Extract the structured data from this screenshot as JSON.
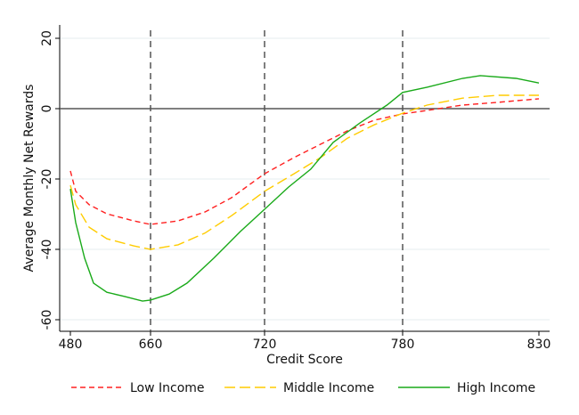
{
  "chart_data": {
    "type": "line",
    "title": "",
    "xlabel": "Credit Score",
    "ylabel": "Average Monthly Net Rewards",
    "x_ticks": [
      480,
      660,
      720,
      780,
      830
    ],
    "y_ticks": [
      20,
      0,
      -20,
      -40,
      -60
    ],
    "ylim": [
      -63,
      22
    ],
    "xlim": [
      480,
      830
    ],
    "reference_lines": {
      "vertical": [
        660,
        720,
        780
      ],
      "horizontal": [
        0
      ]
    },
    "grid": "horizontal light",
    "legend_position": "bottom",
    "series": [
      {
        "name": "Low Income",
        "color": "#ff2020",
        "style": "short-dash",
        "x": [
          480,
          492,
          522,
          562,
          622,
          660,
          674.5,
          688.6,
          702.7,
          720,
          732.8,
          744.4,
          756,
          767.6,
          780,
          789,
          802,
          815,
          830
        ],
        "y": [
          -17.7,
          -23.5,
          -27.3,
          -29.9,
          -31.9,
          -32.9,
          -31.9,
          -29.4,
          -25.3,
          -18.5,
          -13.9,
          -10.1,
          -6.3,
          -3.3,
          -1.5,
          -0.5,
          1.0,
          1.8,
          2.8
        ]
      },
      {
        "name": "Middle Income",
        "color": "#ffcc00",
        "style": "long-dash",
        "x": [
          480,
          492,
          522,
          562,
          622,
          660,
          674.5,
          688.6,
          702.7,
          720,
          732.8,
          744.4,
          756,
          767.6,
          780,
          789,
          802,
          815,
          830
        ],
        "y": [
          -21.8,
          -27.3,
          -33.7,
          -37.0,
          -39.0,
          -40.0,
          -38.7,
          -35.4,
          -30.4,
          -23.5,
          -18.5,
          -13.9,
          -8.4,
          -4.6,
          -1.3,
          1.0,
          3.0,
          3.8,
          3.8
        ]
      },
      {
        "name": "High Income",
        "color": "#1aaa1a",
        "style": "solid",
        "x": [
          480,
          492,
          512,
          532,
          562,
          602,
          642,
          660,
          669.8,
          679.2,
          693.3,
          707.3,
          720,
          730.4,
          740.1,
          749.8,
          761.4,
          773.2,
          780,
          789,
          802,
          808.5,
          821.6,
          830
        ],
        "y": [
          -22.8,
          -32.4,
          -42.5,
          -49.6,
          -52.2,
          -53.4,
          -54.7,
          -54.4,
          -52.7,
          -49.6,
          -42.5,
          -34.9,
          -28.6,
          -22.3,
          -17.2,
          -9.6,
          -4.1,
          1.0,
          4.6,
          6.1,
          8.6,
          9.4,
          8.6,
          7.3
        ]
      }
    ]
  }
}
